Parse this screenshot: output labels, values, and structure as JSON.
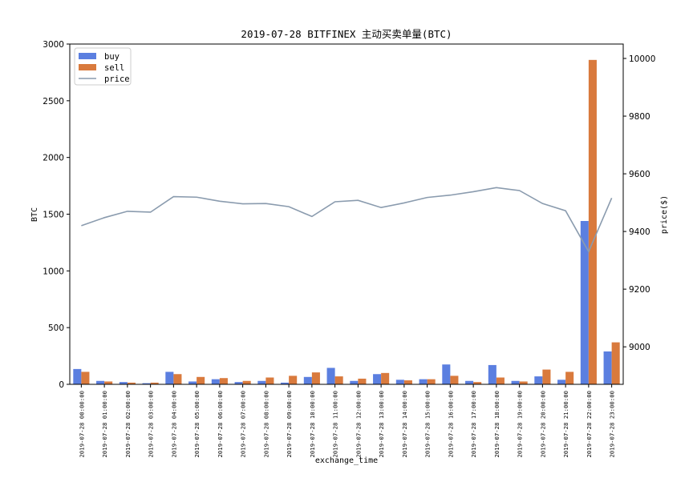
{
  "chart_data": {
    "type": "bar",
    "title": "2019-07-28 BITFINEX 主动买卖单量(BTC)",
    "xlabel": "exchange_time",
    "ylabel": "BTC",
    "y2label": "price($)",
    "ylim": [
      0,
      3000
    ],
    "y2lim": [
      8870,
      10050
    ],
    "yticks": [
      0,
      500,
      1000,
      1500,
      2000,
      2500,
      3000
    ],
    "y2ticks": [
      9000,
      9200,
      9400,
      9600,
      9800,
      10000
    ],
    "legend_position": "top-left",
    "grid": false,
    "categories": [
      "2019-07-28 00:00:00",
      "2019-07-28 01:00:00",
      "2019-07-28 02:00:00",
      "2019-07-28 03:00:00",
      "2019-07-28 04:00:00",
      "2019-07-28 05:00:00",
      "2019-07-28 06:00:00",
      "2019-07-28 07:00:00",
      "2019-07-28 08:00:00",
      "2019-07-28 09:00:00",
      "2019-07-28 10:00:00",
      "2019-07-28 11:00:00",
      "2019-07-28 12:00:00",
      "2019-07-28 13:00:00",
      "2019-07-28 14:00:00",
      "2019-07-28 15:00:00",
      "2019-07-28 16:00:00",
      "2019-07-28 17:00:00",
      "2019-07-28 18:00:00",
      "2019-07-28 19:00:00",
      "2019-07-28 20:00:00",
      "2019-07-28 21:00:00",
      "2019-07-28 22:00:00",
      "2019-07-28 23:00:00"
    ],
    "series": [
      {
        "name": "buy",
        "kind": "bar",
        "axis": "left",
        "color": "#5b7fe0",
        "values": [
          135,
          30,
          20,
          10,
          110,
          25,
          45,
          20,
          30,
          15,
          65,
          145,
          30,
          90,
          40,
          45,
          175,
          30,
          170,
          30,
          70,
          40,
          1440,
          290
        ]
      },
      {
        "name": "sell",
        "kind": "bar",
        "axis": "left",
        "color": "#d97a3d",
        "values": [
          110,
          25,
          15,
          15,
          90,
          65,
          55,
          30,
          60,
          75,
          105,
          70,
          50,
          100,
          35,
          45,
          75,
          20,
          60,
          25,
          130,
          110,
          2860,
          370
        ]
      },
      {
        "name": "price",
        "kind": "line",
        "axis": "right",
        "color": "#8a9bae",
        "values": [
          9420,
          9448,
          9470,
          9467,
          9521,
          9519,
          9505,
          9496,
          9497,
          9486,
          9452,
          9503,
          9508,
          9483,
          9499,
          9518,
          9526,
          9538,
          9552,
          9542,
          9497,
          9472,
          9330,
          9516
        ]
      }
    ]
  }
}
